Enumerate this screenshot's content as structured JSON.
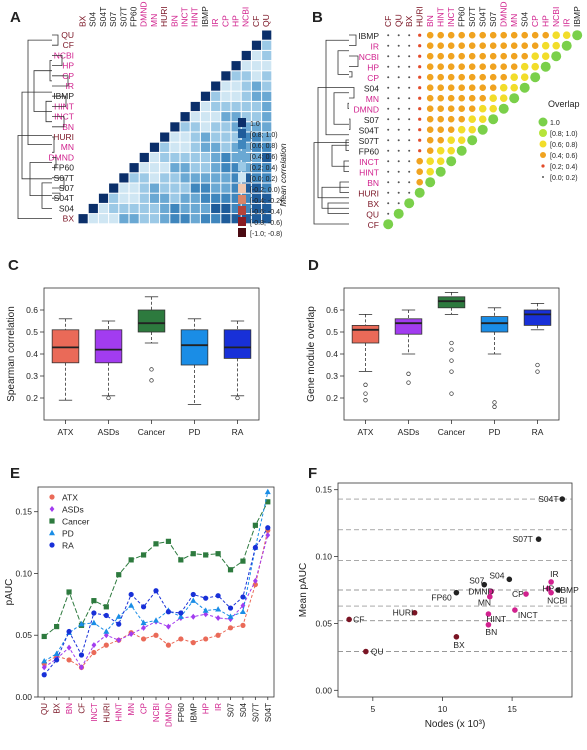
{
  "colors": {
    "pink": "#d1228e",
    "darkred": "#7a1424",
    "gray": "#222222",
    "atx": "#ea6a58",
    "asds": "#a23cf0",
    "cancer": "#2d7a3e",
    "pd": "#1a8de6",
    "ra": "#1830d8",
    "scale_pos": [
      "#0b2f6a",
      "#1f5c9a",
      "#3f86bd",
      "#6aa8d3",
      "#9cc9e6",
      "#cfe6f3"
    ],
    "scale_neg": [
      "#f1c8b0",
      "#d98569",
      "#b4433a",
      "#8a1c24",
      "#4a0a12"
    ],
    "overlap": [
      "#7ad04a",
      "#b6e43a",
      "#f2dd2a",
      "#f0a320",
      "#e24b2a",
      "#555555"
    ]
  },
  "panel_letters": [
    "A",
    "B",
    "C",
    "D",
    "E",
    "F"
  ],
  "networks": [
    {
      "name": "BX",
      "c": "darkred"
    },
    {
      "name": "S04",
      "c": "gray"
    },
    {
      "name": "S04T",
      "c": "gray"
    },
    {
      "name": "S07",
      "c": "gray"
    },
    {
      "name": "S07T",
      "c": "gray"
    },
    {
      "name": "FP60",
      "c": "gray"
    },
    {
      "name": "DMND",
      "c": "pink"
    },
    {
      "name": "MN",
      "c": "pink"
    },
    {
      "name": "HURI",
      "c": "darkred"
    },
    {
      "name": "BN",
      "c": "pink"
    },
    {
      "name": "INCT",
      "c": "pink"
    },
    {
      "name": "HINT",
      "c": "pink"
    },
    {
      "name": "IBMP",
      "c": "gray"
    },
    {
      "name": "IR",
      "c": "pink"
    },
    {
      "name": "CP",
      "c": "pink"
    },
    {
      "name": "HP",
      "c": "pink"
    },
    {
      "name": "NCBI",
      "c": "pink"
    },
    {
      "name": "CF",
      "c": "darkred"
    },
    {
      "name": "QU",
      "c": "darkred"
    }
  ],
  "panelA": {
    "rows": [
      "QU",
      "CF",
      "NCBI",
      "HP",
      "CP",
      "IR",
      "IBMP",
      "HINT",
      "INCT",
      "BN",
      "HURI",
      "MN",
      "DMND",
      "FP60",
      "S07T",
      "S07",
      "S04T",
      "S04",
      "BX"
    ],
    "cols": [
      "BX",
      "S04",
      "S04T",
      "S07",
      "S07T",
      "FP60",
      "DMND",
      "MN",
      "HURI",
      "BN",
      "INCT",
      "HINT",
      "IBMP",
      "IR",
      "CP",
      "HP",
      "NCBI",
      "CF",
      "QU"
    ],
    "legend_title": "Mean correlation",
    "legend_labels": [
      "1.0",
      "[0.8; 1.0)",
      "[0.6; 0.8)",
      "[0.4; 0.6)",
      "[0.2; 0.4)",
      "[0.0; 0.2)",
      "[-0.2; 0.0)",
      "[-0.4; -0.2)",
      "[-0.6; -0.4)",
      "[-0.8; -0.6)",
      "[-1.0; -0.8)"
    ]
  },
  "panelB": {
    "rows": [
      "IBMP",
      "IR",
      "NCBI",
      "HP",
      "CP",
      "S04",
      "MN",
      "DMND",
      "S07",
      "S04T",
      "S07T",
      "FP60",
      "INCT",
      "HINT",
      "BN",
      "HURI",
      "BX",
      "QU",
      "CF"
    ],
    "cols": [
      "CF",
      "QU",
      "BX",
      "HURI",
      "BN",
      "HINT",
      "INCT",
      "FP60",
      "S07T",
      "S04T",
      "S07",
      "DMND",
      "MN",
      "S04",
      "CP",
      "HP",
      "NCBI",
      "IR",
      "IBMP"
    ],
    "legend_title": "Overlap",
    "legend_labels": [
      "1.0",
      "[0.8; 1.0)",
      "[0.6; 0.8)",
      "[0.4; 0.6)",
      "[0.2; 0.4)",
      "[0.0; 0.2)"
    ]
  },
  "chart_data": [
    {
      "type": "box",
      "panel": "C",
      "ylabel": "Spearman correlation",
      "categories": [
        "ATX",
        "ASDs",
        "Cancer",
        "PD",
        "RA"
      ],
      "ylim": [
        0.1,
        0.7
      ],
      "yticks": [
        0.2,
        0.3,
        0.4,
        0.5,
        0.6
      ],
      "boxes": [
        {
          "q1": 0.36,
          "median": 0.43,
          "q3": 0.51,
          "low": 0.19,
          "high": 0.56,
          "outliers": []
        },
        {
          "q1": 0.36,
          "median": 0.42,
          "q3": 0.51,
          "low": 0.21,
          "high": 0.55,
          "outliers": [
            0.2
          ]
        },
        {
          "q1": 0.5,
          "median": 0.54,
          "q3": 0.6,
          "low": 0.45,
          "high": 0.66,
          "outliers": [
            0.33,
            0.28
          ]
        },
        {
          "q1": 0.35,
          "median": 0.44,
          "q3": 0.51,
          "low": 0.17,
          "high": 0.56,
          "outliers": []
        },
        {
          "q1": 0.38,
          "median": 0.43,
          "q3": 0.51,
          "low": 0.21,
          "high": 0.55,
          "outliers": [
            0.2
          ]
        }
      ]
    },
    {
      "type": "box",
      "panel": "D",
      "ylabel": "Gene module overlap",
      "categories": [
        "ATX",
        "ASDs",
        "Cancer",
        "PD",
        "RA"
      ],
      "ylim": [
        0.1,
        0.7
      ],
      "yticks": [
        0.2,
        0.3,
        0.4,
        0.5,
        0.6
      ],
      "boxes": [
        {
          "q1": 0.45,
          "median": 0.51,
          "q3": 0.53,
          "low": 0.32,
          "high": 0.58,
          "outliers": [
            0.26,
            0.22,
            0.19
          ]
        },
        {
          "q1": 0.49,
          "median": 0.54,
          "q3": 0.56,
          "low": 0.4,
          "high": 0.6,
          "outliers": [
            0.31,
            0.27
          ]
        },
        {
          "q1": 0.61,
          "median": 0.64,
          "q3": 0.66,
          "low": 0.58,
          "high": 0.68,
          "outliers": [
            0.45,
            0.42,
            0.37,
            0.32,
            0.22
          ]
        },
        {
          "q1": 0.5,
          "median": 0.54,
          "q3": 0.57,
          "low": 0.4,
          "high": 0.61,
          "outliers": [
            0.18,
            0.16
          ]
        },
        {
          "q1": 0.53,
          "median": 0.58,
          "q3": 0.6,
          "low": 0.51,
          "high": 0.63,
          "outliers": [
            0.35,
            0.32
          ]
        }
      ]
    },
    {
      "type": "line",
      "panel": "E",
      "ylabel": "pAUC",
      "ylim": [
        0.0,
        0.17
      ],
      "yticks": [
        0.0,
        0.05,
        0.1,
        0.15
      ],
      "categories": [
        "QU",
        "BX",
        "BN",
        "CF",
        "INCT",
        "HURI",
        "HINT",
        "MN",
        "CP",
        "NCBI",
        "DMND",
        "FP60",
        "IBMP",
        "HP",
        "IR",
        "S07",
        "S04",
        "S07T",
        "S04T"
      ],
      "series": [
        {
          "name": "ATX",
          "values": [
            0.027,
            0.033,
            0.03,
            0.024,
            0.036,
            0.042,
            0.046,
            0.052,
            0.047,
            0.05,
            0.042,
            0.047,
            0.044,
            0.047,
            0.05,
            0.056,
            0.058,
            0.091,
            0.135
          ]
        },
        {
          "name": "ASDs",
          "values": [
            0.024,
            0.031,
            0.04,
            0.024,
            0.042,
            0.05,
            0.046,
            0.051,
            0.056,
            0.061,
            0.057,
            0.064,
            0.065,
            0.067,
            0.064,
            0.063,
            0.074,
            0.094,
            0.131
          ]
        },
        {
          "name": "Cancer",
          "values": [
            0.049,
            0.057,
            0.085,
            0.058,
            0.078,
            0.073,
            0.099,
            0.111,
            0.115,
            0.124,
            0.126,
            0.111,
            0.116,
            0.115,
            0.116,
            0.103,
            0.11,
            0.139,
            0.158
          ]
        },
        {
          "name": "PD",
          "values": [
            0.029,
            0.035,
            0.052,
            0.059,
            0.06,
            0.053,
            0.065,
            0.074,
            0.06,
            0.062,
            0.07,
            0.065,
            0.078,
            0.07,
            0.071,
            0.065,
            0.069,
            0.121,
            0.166
          ]
        },
        {
          "name": "RA",
          "values": [
            0.018,
            0.03,
            0.053,
            0.034,
            0.068,
            0.066,
            0.059,
            0.083,
            0.073,
            0.086,
            0.069,
            0.068,
            0.083,
            0.08,
            0.082,
            0.072,
            0.081,
            0.121,
            0.137
          ]
        }
      ]
    },
    {
      "type": "scatter",
      "panel": "F",
      "xlabel": "Nodes (x 10³)",
      "ylabel": "Mean pAUC",
      "xlim": [
        2.5,
        19.3
      ],
      "ylim": [
        -0.005,
        0.155
      ],
      "xticks": [
        5,
        10,
        15
      ],
      "yticks": [
        0.0,
        0.05,
        0.1,
        0.15
      ],
      "hlines": [
        0.029,
        0.052,
        0.063,
        0.075,
        0.097,
        0.12,
        0.143
      ],
      "points": [
        {
          "label": "S04T",
          "x": 18.6,
          "y": 0.143,
          "c": "gray"
        },
        {
          "label": "S07T",
          "x": 16.9,
          "y": 0.113,
          "c": "gray"
        },
        {
          "label": "S04",
          "x": 14.8,
          "y": 0.083,
          "c": "gray"
        },
        {
          "label": "S07",
          "x": 13.0,
          "y": 0.079,
          "c": "gray"
        },
        {
          "label": "DMND",
          "x": 13.5,
          "y": 0.074,
          "c": "pink"
        },
        {
          "label": "FP60",
          "x": 11.0,
          "y": 0.073,
          "c": "gray"
        },
        {
          "label": "IR",
          "x": 17.8,
          "y": 0.081,
          "c": "pink"
        },
        {
          "label": "HP",
          "x": 17.6,
          "y": 0.076,
          "c": "pink"
        },
        {
          "label": "IBMP",
          "x": 18.3,
          "y": 0.075,
          "c": "gray"
        },
        {
          "label": "CP",
          "x": 16.0,
          "y": 0.072,
          "c": "pink"
        },
        {
          "label": "NCBI",
          "x": 17.8,
          "y": 0.073,
          "c": "pink"
        },
        {
          "label": "MN",
          "x": 13.4,
          "y": 0.07,
          "c": "pink"
        },
        {
          "label": "INCT",
          "x": 15.2,
          "y": 0.06,
          "c": "pink"
        },
        {
          "label": "HURI",
          "x": 8.0,
          "y": 0.058,
          "c": "darkred"
        },
        {
          "label": "HINT",
          "x": 13.3,
          "y": 0.057,
          "c": "pink"
        },
        {
          "label": "CF",
          "x": 3.3,
          "y": 0.053,
          "c": "darkred"
        },
        {
          "label": "BN",
          "x": 13.3,
          "y": 0.049,
          "c": "pink"
        },
        {
          "label": "BX",
          "x": 11.0,
          "y": 0.04,
          "c": "darkred"
        },
        {
          "label": "QU",
          "x": 4.5,
          "y": 0.029,
          "c": "darkred"
        }
      ]
    }
  ]
}
